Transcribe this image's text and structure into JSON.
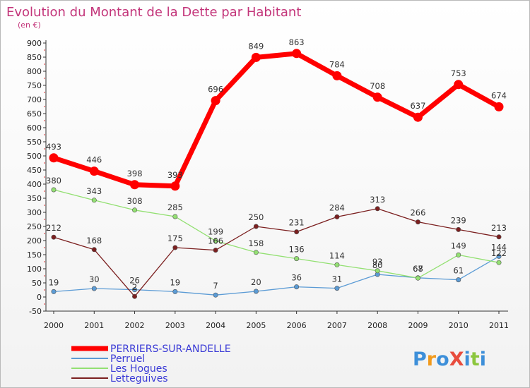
{
  "chart_data": {
    "type": "line",
    "title": "Evolution du Montant de la Dette par Habitant",
    "subtitle": "(en €)",
    "xlabel": "",
    "ylabel": "",
    "ylim": [
      -50,
      900
    ],
    "y_ticks": [
      -50,
      0,
      50,
      100,
      150,
      200,
      250,
      300,
      350,
      400,
      450,
      500,
      550,
      600,
      650,
      700,
      750,
      800,
      850,
      900
    ],
    "grid": false,
    "legend_position": "bottom-left",
    "x": [
      "2000",
      "2001",
      "2002",
      "2003",
      "2004",
      "2005",
      "2006",
      "2007",
      "2008",
      "2009",
      "2010",
      "2011"
    ],
    "series": [
      {
        "name": "PERRIERS-SUR-ANDELLE",
        "color": "#ff0000",
        "values": [
          493,
          446,
          398,
          393,
          696,
          849,
          863,
          784,
          708,
          637,
          753,
          674
        ]
      },
      {
        "name": "Perruel",
        "color": "#5b9bd5",
        "values": [
          19,
          30,
          26,
          19,
          7,
          20,
          36,
          31,
          80,
          68,
          61,
          144
        ]
      },
      {
        "name": "Les Hogues",
        "color": "#93e072",
        "values": [
          380,
          343,
          308,
          285,
          199,
          158,
          136,
          114,
          93,
          67,
          149,
          122
        ]
      },
      {
        "name": "Letteguives",
        "color": "#7b1f1f",
        "values": [
          212,
          168,
          2,
          175,
          166,
          250,
          231,
          284,
          313,
          266,
          239,
          213
        ]
      }
    ],
    "watermark": "ProXiti"
  }
}
